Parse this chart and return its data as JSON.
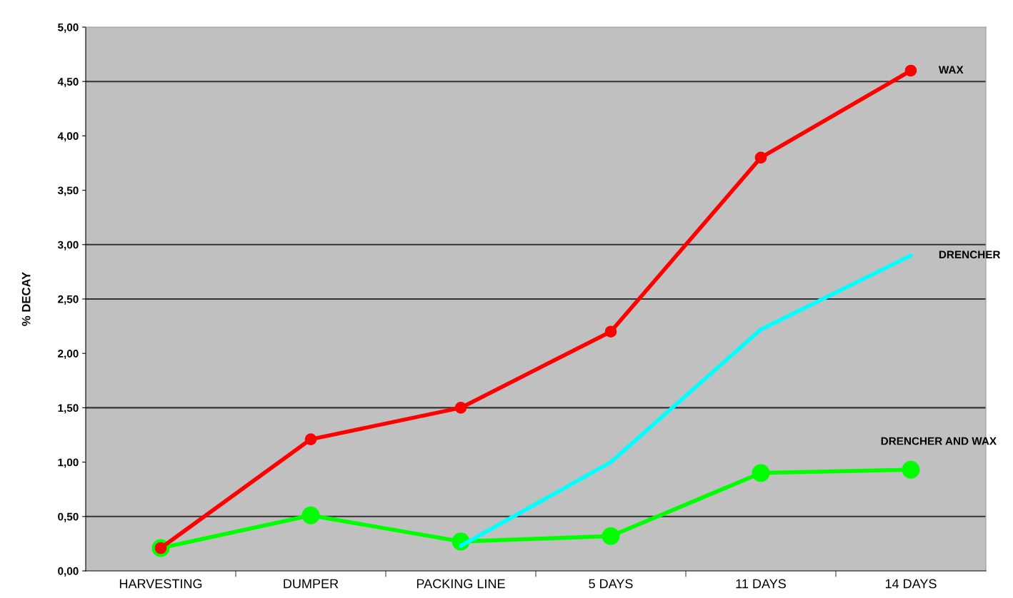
{
  "chart_data": {
    "type": "line",
    "ylabel": "% DECAY",
    "categories": [
      "HARVESTING",
      "DUMPER",
      "PACKING LINE",
      "5 DAYS",
      "11 DAYS",
      "14 DAYS"
    ],
    "series": [
      {
        "name": "WAX",
        "color": "#ff0000",
        "marker": "circle",
        "values": [
          0.21,
          1.21,
          1.5,
          2.2,
          3.8,
          4.6
        ]
      },
      {
        "name": "DRENCHER",
        "color": "#00ffff",
        "marker": "none",
        "values": [
          null,
          null,
          0.23,
          1.0,
          2.22,
          2.9
        ]
      },
      {
        "name": "DRENCHER AND WAX",
        "color": "#00ff00",
        "marker": "circle",
        "values": [
          0.21,
          0.51,
          0.27,
          0.32,
          0.9,
          0.93
        ]
      }
    ],
    "ylim": [
      0,
      5
    ],
    "yticks": [
      {
        "value": 0,
        "label": "0,00"
      },
      {
        "value": 0.5,
        "label": "0,50"
      },
      {
        "value": 1,
        "label": "1,00"
      },
      {
        "value": 1.5,
        "label": "1,50"
      },
      {
        "value": 2,
        "label": "2,00"
      },
      {
        "value": 2.5,
        "label": "2,50"
      },
      {
        "value": 3,
        "label": "3,00"
      },
      {
        "value": 3.5,
        "label": "3,50"
      },
      {
        "value": 4,
        "label": "4,00"
      },
      {
        "value": 4.5,
        "label": "4,50"
      },
      {
        "value": 5,
        "label": "5,00"
      }
    ],
    "ref_lines": [
      {
        "axis": "y",
        "value": 0.5,
        "color": "#333333"
      },
      {
        "axis": "y",
        "value": 1.5,
        "color": "#333333"
      },
      {
        "axis": "y",
        "value": 2.5,
        "color": "#333333"
      },
      {
        "axis": "y",
        "value": 3,
        "color": "#333333"
      },
      {
        "axis": "y",
        "value": 4.5,
        "color": "#333333"
      }
    ],
    "grid": false,
    "legend": false
  }
}
